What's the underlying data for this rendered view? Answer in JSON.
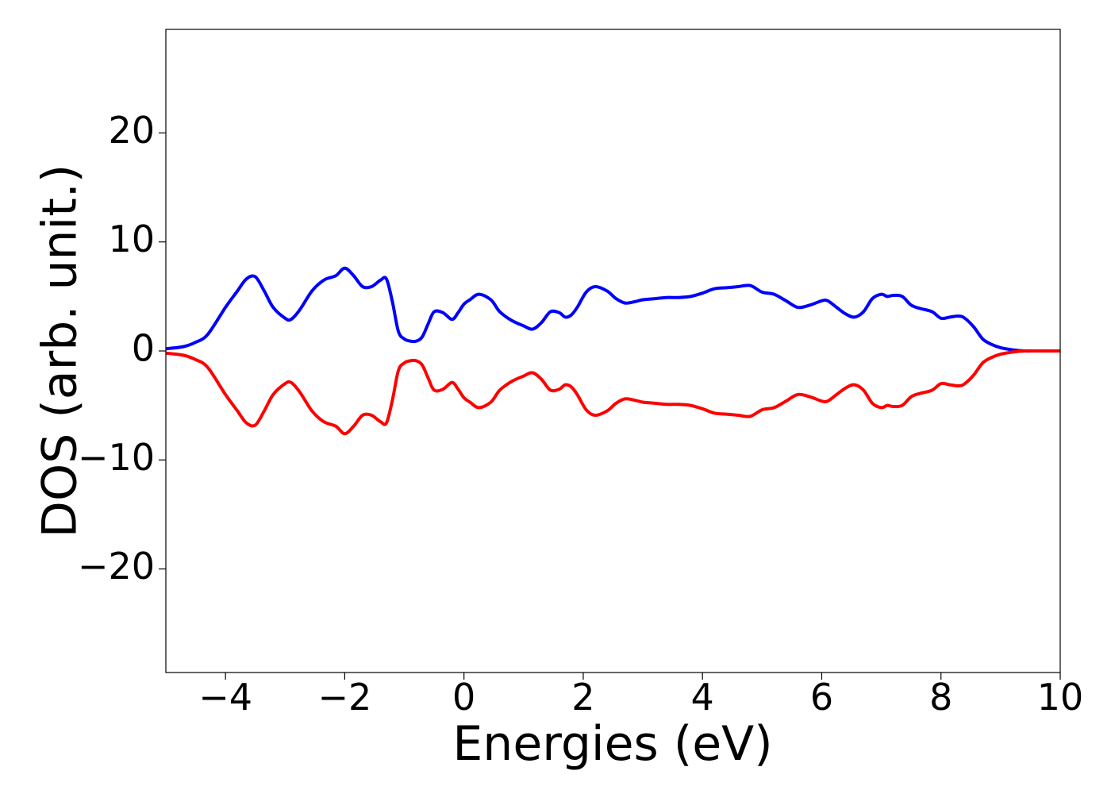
{
  "chart_data": {
    "type": "line",
    "title": "",
    "xlabel": "Energies (eV)",
    "ylabel": "DOS (arb. unit.)",
    "xlim": [
      -5,
      10
    ],
    "ylim": [
      -29.5,
      29.5
    ],
    "grid": false,
    "legend": "none",
    "xticks": [
      -4,
      -2,
      0,
      2,
      4,
      6,
      8,
      10
    ],
    "xtick_labels": [
      "−4",
      "−2",
      "0",
      "2",
      "4",
      "6",
      "8",
      "10"
    ],
    "yticks": [
      20,
      10,
      0,
      -10,
      -20
    ],
    "ytick_labels": [
      "20",
      "10",
      "0",
      "−10",
      "−20"
    ],
    "series": [
      {
        "color": "#0000ff",
        "x": [
          -5.0,
          -4.7,
          -4.5,
          -4.3,
          -4.0,
          -3.8,
          -3.65,
          -3.5,
          -3.35,
          -3.2,
          -3.0,
          -2.9,
          -2.75,
          -2.55,
          -2.35,
          -2.15,
          -2.0,
          -1.85,
          -1.7,
          -1.55,
          -1.4,
          -1.3,
          -1.2,
          -1.1,
          -1.0,
          -0.9,
          -0.8,
          -0.7,
          -0.6,
          -0.5,
          -0.35,
          -0.2,
          -0.1,
          0.0,
          0.1,
          0.25,
          0.45,
          0.6,
          0.8,
          1.0,
          1.15,
          1.3,
          1.45,
          1.6,
          1.7,
          1.8,
          1.9,
          2.05,
          2.2,
          2.4,
          2.55,
          2.7,
          2.85,
          3.0,
          3.2,
          3.4,
          3.6,
          3.8,
          4.0,
          4.2,
          4.4,
          4.6,
          4.8,
          5.0,
          5.2,
          5.4,
          5.6,
          5.8,
          6.0,
          6.1,
          6.25,
          6.4,
          6.55,
          6.7,
          6.85,
          7.0,
          7.1,
          7.2,
          7.35,
          7.5,
          7.65,
          7.85,
          8.0,
          8.15,
          8.3,
          8.4,
          8.55,
          8.7,
          8.85,
          9.0,
          9.2,
          9.4,
          9.6,
          9.8,
          10.0
        ],
        "y": [
          0.2,
          0.4,
          0.8,
          1.5,
          4.0,
          5.5,
          6.6,
          6.8,
          5.5,
          4.0,
          3.0,
          2.9,
          3.8,
          5.5,
          6.5,
          6.9,
          7.6,
          6.9,
          5.9,
          5.9,
          6.5,
          6.6,
          4.5,
          1.8,
          1.1,
          0.9,
          0.9,
          1.3,
          2.5,
          3.6,
          3.5,
          2.9,
          3.5,
          4.3,
          4.7,
          5.2,
          4.7,
          3.6,
          2.8,
          2.3,
          2.0,
          2.6,
          3.6,
          3.5,
          3.1,
          3.3,
          4.0,
          5.4,
          5.9,
          5.5,
          4.8,
          4.4,
          4.5,
          4.7,
          4.8,
          4.9,
          4.9,
          5.0,
          5.3,
          5.7,
          5.8,
          5.9,
          6.0,
          5.4,
          5.2,
          4.6,
          4.0,
          4.2,
          4.6,
          4.6,
          4.0,
          3.4,
          3.1,
          3.6,
          4.8,
          5.2,
          5.0,
          5.1,
          5.0,
          4.2,
          3.9,
          3.6,
          3.0,
          3.1,
          3.2,
          3.0,
          2.2,
          1.1,
          0.6,
          0.3,
          0.1,
          0.0,
          0.0,
          0.0,
          0.0
        ]
      },
      {
        "color": "#ff0000",
        "x": [
          -5.0,
          -4.7,
          -4.5,
          -4.3,
          -4.0,
          -3.8,
          -3.65,
          -3.5,
          -3.35,
          -3.2,
          -3.0,
          -2.9,
          -2.75,
          -2.55,
          -2.35,
          -2.15,
          -2.0,
          -1.85,
          -1.7,
          -1.55,
          -1.4,
          -1.3,
          -1.2,
          -1.1,
          -1.0,
          -0.9,
          -0.8,
          -0.7,
          -0.6,
          -0.5,
          -0.35,
          -0.2,
          -0.1,
          0.0,
          0.1,
          0.25,
          0.45,
          0.6,
          0.8,
          1.0,
          1.15,
          1.3,
          1.45,
          1.6,
          1.7,
          1.8,
          1.9,
          2.05,
          2.2,
          2.4,
          2.55,
          2.7,
          2.85,
          3.0,
          3.2,
          3.4,
          3.6,
          3.8,
          4.0,
          4.2,
          4.4,
          4.6,
          4.8,
          5.0,
          5.2,
          5.4,
          5.6,
          5.8,
          6.0,
          6.1,
          6.25,
          6.4,
          6.55,
          6.7,
          6.85,
          7.0,
          7.1,
          7.2,
          7.35,
          7.5,
          7.65,
          7.85,
          8.0,
          8.15,
          8.3,
          8.4,
          8.55,
          8.7,
          8.85,
          9.0,
          9.2,
          9.4,
          9.6,
          9.8,
          10.0
        ],
        "y": [
          -0.2,
          -0.4,
          -0.8,
          -1.5,
          -4.0,
          -5.5,
          -6.6,
          -6.8,
          -5.5,
          -4.0,
          -3.0,
          -2.9,
          -3.8,
          -5.5,
          -6.5,
          -6.9,
          -7.6,
          -6.9,
          -5.9,
          -5.9,
          -6.5,
          -6.6,
          -4.5,
          -1.8,
          -1.1,
          -0.9,
          -0.9,
          -1.3,
          -2.5,
          -3.6,
          -3.5,
          -2.9,
          -3.5,
          -4.3,
          -4.7,
          -5.2,
          -4.7,
          -3.6,
          -2.8,
          -2.3,
          -2.0,
          -2.6,
          -3.6,
          -3.5,
          -3.1,
          -3.3,
          -4.0,
          -5.4,
          -5.9,
          -5.5,
          -4.8,
          -4.4,
          -4.5,
          -4.7,
          -4.8,
          -4.9,
          -4.9,
          -5.0,
          -5.3,
          -5.7,
          -5.8,
          -5.9,
          -6.0,
          -5.4,
          -5.2,
          -4.6,
          -4.0,
          -4.2,
          -4.6,
          -4.6,
          -4.0,
          -3.4,
          -3.1,
          -3.6,
          -4.8,
          -5.2,
          -5.0,
          -5.1,
          -5.0,
          -4.2,
          -3.9,
          -3.6,
          -3.0,
          -3.1,
          -3.2,
          -3.0,
          -2.2,
          -1.1,
          -0.6,
          -0.3,
          -0.1,
          0.0,
          0.0,
          0.0,
          0.0
        ]
      }
    ]
  }
}
